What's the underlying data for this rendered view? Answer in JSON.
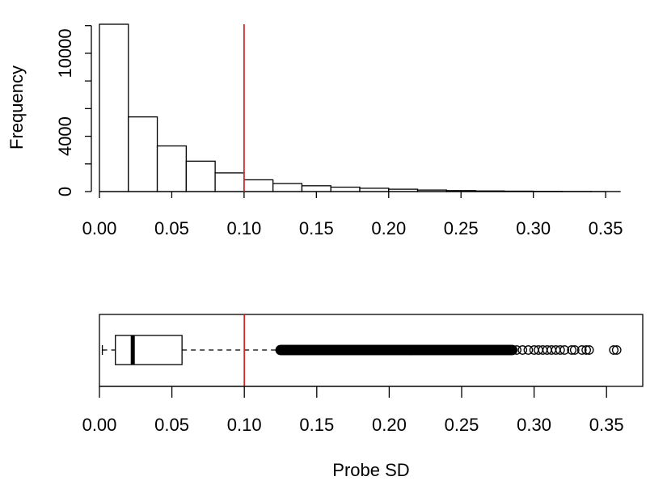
{
  "colors": {
    "reference_line": "#d62728",
    "bar_fill": "#ffffff",
    "stroke": "#000000"
  },
  "chart_data": [
    {
      "type": "bar",
      "subtype": "histogram",
      "ylabel": "Frequency",
      "xlim": [
        0,
        0.36
      ],
      "ylim": [
        0,
        12100
      ],
      "x_ticks": [
        "0.00",
        "0.05",
        "0.10",
        "0.15",
        "0.20",
        "0.25",
        "0.30",
        "0.35"
      ],
      "y_ticks": [
        "0",
        "4000",
        "10000"
      ],
      "y_minor_ticks": [
        2000,
        6000,
        8000,
        12000
      ],
      "bin_width": 0.02,
      "bins": [
        {
          "x0": 0.0,
          "x1": 0.02,
          "count": 12150
        },
        {
          "x0": 0.02,
          "x1": 0.04,
          "count": 5400
        },
        {
          "x0": 0.04,
          "x1": 0.06,
          "count": 3300
        },
        {
          "x0": 0.06,
          "x1": 0.08,
          "count": 2200
        },
        {
          "x0": 0.08,
          "x1": 0.1,
          "count": 1350
        },
        {
          "x0": 0.1,
          "x1": 0.12,
          "count": 850
        },
        {
          "x0": 0.12,
          "x1": 0.14,
          "count": 580
        },
        {
          "x0": 0.14,
          "x1": 0.16,
          "count": 420
        },
        {
          "x0": 0.16,
          "x1": 0.18,
          "count": 320
        },
        {
          "x0": 0.18,
          "x1": 0.2,
          "count": 240
        },
        {
          "x0": 0.2,
          "x1": 0.22,
          "count": 170
        },
        {
          "x0": 0.22,
          "x1": 0.24,
          "count": 110
        },
        {
          "x0": 0.24,
          "x1": 0.26,
          "count": 70
        },
        {
          "x0": 0.26,
          "x1": 0.28,
          "count": 45
        },
        {
          "x0": 0.28,
          "x1": 0.3,
          "count": 30
        },
        {
          "x0": 0.3,
          "x1": 0.32,
          "count": 18
        },
        {
          "x0": 0.32,
          "x1": 0.34,
          "count": 10
        },
        {
          "x0": 0.34,
          "x1": 0.36,
          "count": 5
        }
      ],
      "reference_line_x": 0.1
    },
    {
      "type": "boxplot",
      "orientation": "horizontal",
      "xlabel": "Probe SD",
      "xlim": [
        0,
        0.375
      ],
      "x_ticks": [
        "0.00",
        "0.05",
        "0.10",
        "0.15",
        "0.20",
        "0.25",
        "0.30",
        "0.35"
      ],
      "whisker_low": 0.002,
      "q1": 0.011,
      "median": 0.023,
      "q3": 0.057,
      "whisker_high": 0.125,
      "outlier_dense_range": [
        0.125,
        0.285
      ],
      "outliers_sparse": [
        0.288,
        0.292,
        0.296,
        0.3,
        0.303,
        0.306,
        0.309,
        0.312,
        0.315,
        0.318,
        0.321,
        0.326,
        0.328,
        0.333,
        0.336,
        0.338,
        0.355,
        0.357
      ],
      "reference_line_x": 0.1
    }
  ]
}
